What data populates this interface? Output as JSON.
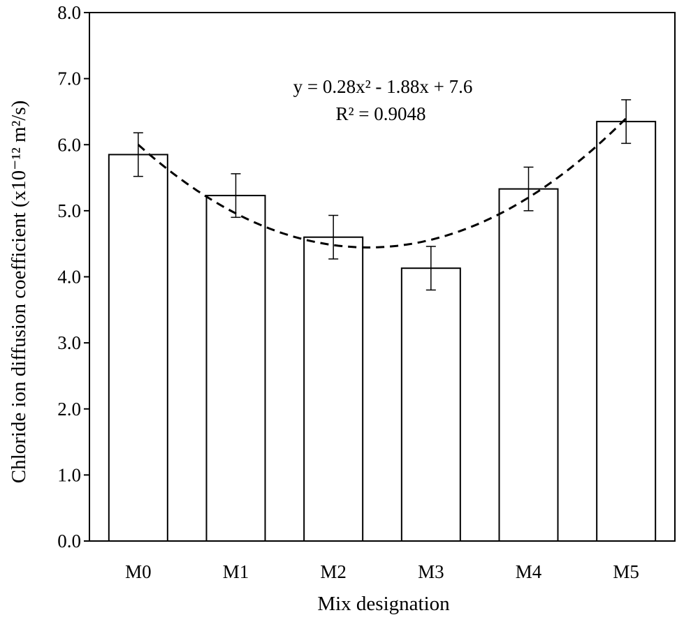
{
  "chart_data": {
    "type": "bar",
    "categories": [
      "M0",
      "M1",
      "M2",
      "M3",
      "M4",
      "M5"
    ],
    "values": [
      5.85,
      5.23,
      4.6,
      4.13,
      5.33,
      6.35
    ],
    "error": [
      0.33,
      0.33,
      0.33,
      0.33,
      0.33,
      0.33
    ],
    "xlabel": "Mix designation",
    "ylabel": "Chloride ion diffusion coefficient (x10⁻¹² m²/s)",
    "ylim": [
      0,
      8
    ],
    "yticks": [
      "0.0",
      "1.0",
      "2.0",
      "3.0",
      "4.0",
      "5.0",
      "6.0",
      "7.0",
      "8.0"
    ],
    "trendline": {
      "type": "polynomial",
      "coefficients": [
        0.28,
        -1.88,
        7.6
      ],
      "equation": "y = 0.28x² - 1.88x + 7.6",
      "r_squared": "R² = 0.9048"
    },
    "grid": false,
    "legend": "none",
    "colors": {
      "bar_fill": "#ffffff",
      "stroke": "#000000"
    }
  }
}
